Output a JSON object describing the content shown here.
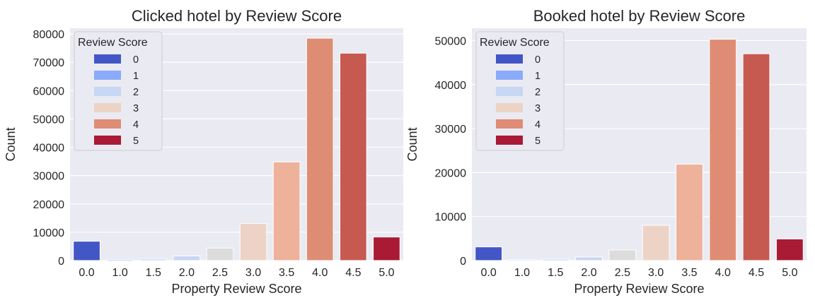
{
  "chart_data": [
    {
      "type": "bar",
      "title": "Clicked hotel by Review Score",
      "xlabel": "Property Review Score",
      "ylabel": "Count",
      "categories": [
        "0.0",
        "1.0",
        "1.5",
        "2.0",
        "2.5",
        "3.0",
        "3.5",
        "4.0",
        "4.5",
        "5.0"
      ],
      "values": [
        6800,
        400,
        500,
        1600,
        4400,
        13100,
        34800,
        78500,
        73200,
        8300
      ],
      "colors": [
        "#4356c6",
        "#8aabfa",
        "#b4cafb",
        "#c7d6f3",
        "#dddcdc",
        "#ecd3c6",
        "#eeb19a",
        "#de8d74",
        "#c65a50",
        "#a91a35"
      ],
      "ylim": [
        0,
        82000
      ],
      "yticks": [
        0,
        10000,
        20000,
        30000,
        40000,
        50000,
        60000,
        70000,
        80000
      ],
      "grid": true,
      "legend": {
        "title": "Review Score",
        "placement": "top-left",
        "entries": [
          {
            "label": "0",
            "color": "#4356c6"
          },
          {
            "label": "1",
            "color": "#8aabfa"
          },
          {
            "label": "2",
            "color": "#c7d6f3"
          },
          {
            "label": "3",
            "color": "#ecd3c6"
          },
          {
            "label": "4",
            "color": "#de8d74"
          },
          {
            "label": "5",
            "color": "#a91a35"
          }
        ]
      }
    },
    {
      "type": "bar",
      "title": "Booked hotel by Review Score",
      "xlabel": "Property Review Score",
      "ylabel": "Count",
      "categories": [
        "0.0",
        "1.0",
        "1.5",
        "2.0",
        "2.5",
        "3.0",
        "3.5",
        "4.0",
        "4.5",
        "5.0"
      ],
      "values": [
        3100,
        200,
        300,
        800,
        2400,
        8000,
        21900,
        50300,
        47000,
        4900
      ],
      "colors": [
        "#4356c6",
        "#8aabfa",
        "#b4cafb",
        "#c7d6f3",
        "#dddcdc",
        "#ecd3c6",
        "#eeb19a",
        "#de8d74",
        "#c65a50",
        "#a91a35"
      ],
      "ylim": [
        0,
        52800
      ],
      "yticks": [
        0,
        10000,
        20000,
        30000,
        40000,
        50000
      ],
      "grid": true,
      "legend": {
        "title": "Review Score",
        "placement": "top-left",
        "entries": [
          {
            "label": "0",
            "color": "#4356c6"
          },
          {
            "label": "1",
            "color": "#8aabfa"
          },
          {
            "label": "2",
            "color": "#c7d6f3"
          },
          {
            "label": "3",
            "color": "#ecd3c6"
          },
          {
            "label": "4",
            "color": "#de8d74"
          },
          {
            "label": "5",
            "color": "#a91a35"
          }
        ]
      }
    }
  ]
}
